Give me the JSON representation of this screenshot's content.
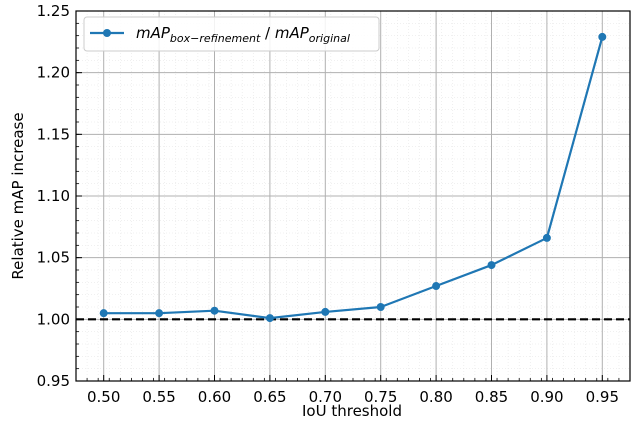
{
  "chart_data": {
    "type": "line",
    "xlabel": "IoU threshold",
    "ylabel": "Relative mAP increase",
    "x": [
      0.5,
      0.55,
      0.6,
      0.65,
      0.7,
      0.75,
      0.8,
      0.85,
      0.9,
      0.95
    ],
    "x_tick_labels": [
      "0.50",
      "0.55",
      "0.60",
      "0.65",
      "0.70",
      "0.75",
      "0.80",
      "0.85",
      "0.90",
      "0.95"
    ],
    "y_tick_labels": [
      "0.95",
      "1.00",
      "1.05",
      "1.10",
      "1.15",
      "1.20",
      "1.25"
    ],
    "y_ticks": [
      0.95,
      1.0,
      1.05,
      1.1,
      1.15,
      1.2,
      1.25
    ],
    "xlim": [
      0.475,
      0.975
    ],
    "ylim": [
      0.95,
      1.25
    ],
    "grid": true,
    "minor_grid": true,
    "legend_position": "top-left",
    "series": [
      {
        "name": "mAP_box-refinement / mAP_original",
        "legend": {
          "main1": "mAP",
          "sub1": "box−refinement",
          "sep": " / ",
          "main2": "mAP",
          "sub2": "original"
        },
        "color": "#1f77b4",
        "values": [
          1.005,
          1.005,
          1.007,
          1.001,
          1.006,
          1.01,
          1.027,
          1.044,
          1.066,
          1.229
        ]
      }
    ],
    "reference_line": {
      "y": 1.0,
      "style": "dashed",
      "color": "#000000"
    }
  }
}
